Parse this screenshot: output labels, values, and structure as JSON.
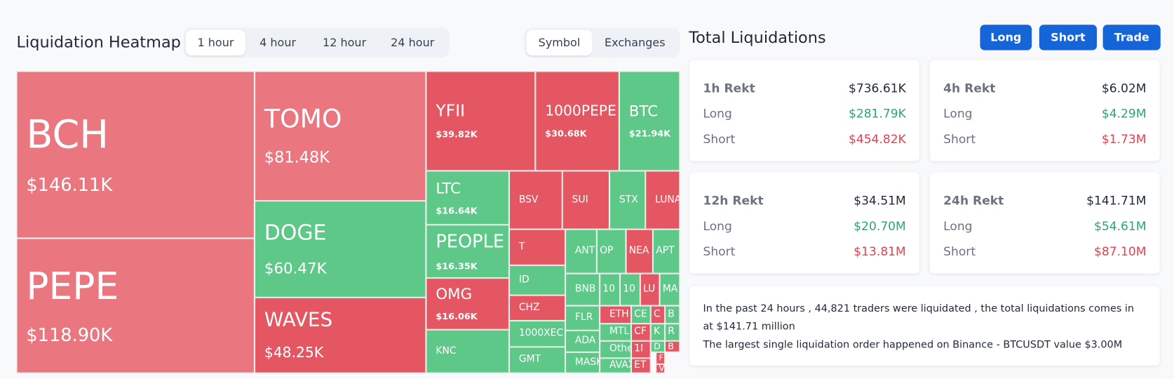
{
  "header": {
    "title": "Liquidation Heatmap",
    "time_tabs": [
      "1 hour",
      "4 hour",
      "12 hour",
      "24 hour"
    ],
    "view_tabs": [
      "Symbol",
      "Exchanges"
    ]
  },
  "heatmap": {
    "tiles": [
      {
        "label": "BCH",
        "value": "$146.11K",
        "color": "#ea7780"
      },
      {
        "label": "PEPE",
        "value": "$118.90K",
        "color": "#ea7780"
      },
      {
        "label": "TOMO",
        "value": "$81.48K",
        "color": "#ea7780"
      },
      {
        "label": "DOGE",
        "value": "$60.47K",
        "color": "#5dc888"
      },
      {
        "label": "WAVES",
        "value": "$48.25K",
        "color": "#e35662"
      },
      {
        "label": "YFII",
        "value": "$39.82K",
        "color": "#e35662"
      },
      {
        "label": "1000PEPE",
        "value": "$30.68K",
        "color": "#e35662"
      },
      {
        "label": "BTC",
        "value": "$21.94K",
        "color": "#5dc888"
      },
      {
        "label": "LTC",
        "value": "$16.64K",
        "color": "#5dc888"
      },
      {
        "label": "PEOPLE",
        "value": "$16.35K",
        "color": "#5dc888"
      },
      {
        "label": "OMG",
        "value": "$16.06K",
        "color": "#e35662"
      },
      {
        "label": "KNC",
        "color": "#5dc888"
      },
      {
        "label": "BSV",
        "color": "#e35662"
      },
      {
        "label": "SUI",
        "color": "#e35662"
      },
      {
        "label": "STX",
        "color": "#5dc888"
      },
      {
        "label": "LUNA",
        "color": "#e35662"
      },
      {
        "label": "T",
        "color": "#e35662"
      },
      {
        "label": "ID",
        "color": "#5dc888"
      },
      {
        "label": "CHZ",
        "color": "#e35662"
      },
      {
        "label": "1000XEC",
        "color": "#5dc888"
      },
      {
        "label": "GMT",
        "color": "#5dc888"
      },
      {
        "label": "ANT",
        "color": "#5dc888"
      },
      {
        "label": "OP",
        "color": "#5dc888"
      },
      {
        "label": "NEA",
        "color": "#e35662"
      },
      {
        "label": "APT",
        "color": "#5dc888"
      },
      {
        "label": "BNB",
        "color": "#5dc888"
      },
      {
        "label": "10",
        "color": "#5dc888"
      },
      {
        "label": "10",
        "color": "#5dc888"
      },
      {
        "label": "LU",
        "color": "#e35662"
      },
      {
        "label": "MA",
        "color": "#5dc888"
      },
      {
        "label": "FLR",
        "color": "#5dc888"
      },
      {
        "label": "ADA",
        "color": "#5dc888"
      },
      {
        "label": "MASK",
        "color": "#5dc888"
      },
      {
        "label": "ETH",
        "color": "#e35662"
      },
      {
        "label": "MTL",
        "color": "#5dc888"
      },
      {
        "label": "Othe",
        "color": "#5dc888"
      },
      {
        "label": "AVAX",
        "color": "#5dc888"
      },
      {
        "label": "CE",
        "color": "#5dc888"
      },
      {
        "label": "CF",
        "color": "#e35662"
      },
      {
        "label": "1I",
        "color": "#e35662"
      },
      {
        "label": "ET",
        "color": "#e35662"
      },
      {
        "label": "C",
        "color": "#e35662"
      },
      {
        "label": "B",
        "color": "#5dc888"
      },
      {
        "label": "K",
        "color": "#5dc888"
      },
      {
        "label": "R",
        "color": "#5dc888"
      },
      {
        "label": "D",
        "color": "#5dc888"
      },
      {
        "label": "B",
        "color": "#e35662"
      },
      {
        "label": "F",
        "color": "#e35662"
      },
      {
        "label": "V",
        "color": "#e35662"
      }
    ]
  },
  "summary": {
    "title": "Total Liquidations",
    "buttons": [
      "Long",
      "Short",
      "Trade"
    ],
    "cards": [
      {
        "title": "1h Rekt",
        "total": "$736.61K",
        "rows": [
          {
            "label": "Long",
            "value": "$281.79K"
          },
          {
            "label": "Short",
            "value": "$454.82K"
          }
        ]
      },
      {
        "title": "4h Rekt",
        "total": "$6.02M",
        "rows": [
          {
            "label": "Long",
            "value": "$4.29M"
          },
          {
            "label": "Short",
            "value": "$1.73M"
          }
        ]
      },
      {
        "title": "12h Rekt",
        "total": "$34.51M",
        "rows": [
          {
            "label": "Long",
            "value": "$20.70M"
          },
          {
            "label": "Short",
            "value": "$13.81M"
          }
        ]
      },
      {
        "title": "24h Rekt",
        "total": "$141.71M",
        "rows": [
          {
            "label": "Long",
            "value": "$54.61M"
          },
          {
            "label": "Short",
            "value": "$87.10M"
          }
        ]
      }
    ],
    "message": [
      "In the past 24 hours , 44,821 traders were liquidated , the total liquidations comes in at $141.71 million",
      "The largest single liquidation order happened on Binance - BTCUSDT value $3.00M"
    ]
  }
}
